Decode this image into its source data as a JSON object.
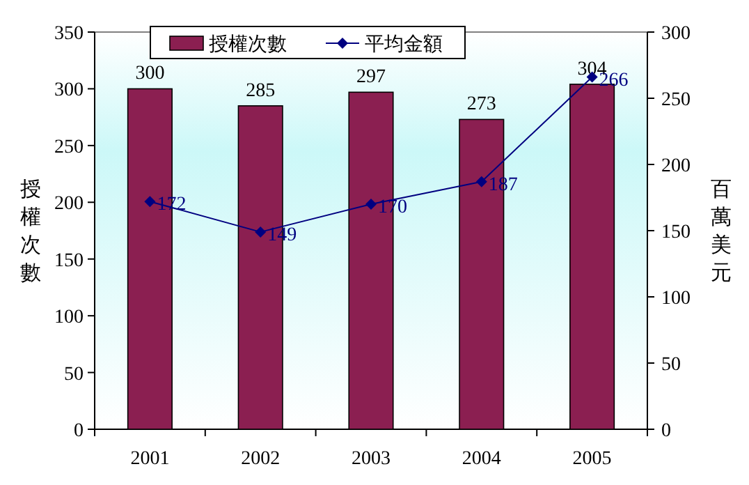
{
  "chart_data": {
    "type": "bar",
    "categories": [
      "2001",
      "2002",
      "2003",
      "2004",
      "2005"
    ],
    "series": [
      {
        "name": "授權次數",
        "color": "#8b1f51",
        "values": [
          300,
          285,
          297,
          273,
          304
        ]
      },
      {
        "name": "平均金額",
        "type": "line",
        "axis": "y2",
        "color": "#000080",
        "marker": "diamond",
        "line_style": "solid",
        "values": [
          172,
          149,
          170,
          187,
          266
        ]
      }
    ],
    "ylabel": "授權次數",
    "y2label": "百萬美元",
    "ylim": [
      0,
      350
    ],
    "yticks": [
      0,
      50,
      100,
      150,
      200,
      250,
      300,
      350
    ],
    "y2lim": [
      0,
      300
    ],
    "y2ticks": [
      0,
      50,
      100,
      150,
      200,
      250,
      300
    ],
    "data_labels": true,
    "legend": "top",
    "grid": false
  }
}
